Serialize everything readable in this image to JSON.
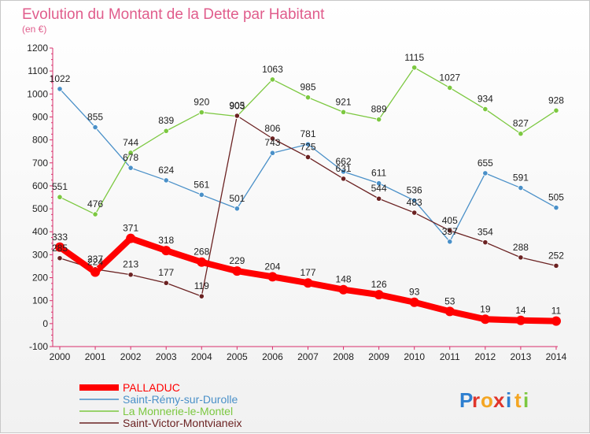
{
  "chart_data": {
    "type": "line",
    "title": "Evolution du Montant de la Dette par Habitant",
    "subtitle": "(en €)",
    "x": [
      "2000",
      "2001",
      "2002",
      "2003",
      "2004",
      "2005",
      "2006",
      "2007",
      "2008",
      "2009",
      "2010",
      "2011",
      "2012",
      "2013",
      "2014"
    ],
    "ylim": [
      -100,
      1200
    ],
    "yticks": [
      -100,
      0,
      100,
      200,
      300,
      400,
      500,
      600,
      700,
      800,
      900,
      1000,
      1100,
      1200
    ],
    "grid": false,
    "legend_position": "bottom-left",
    "series": [
      {
        "name": "Saint-Rémy-sur-Durolle",
        "color": "#4a90c8",
        "values": [
          1022,
          855,
          678,
          624,
          561,
          501,
          743,
          781,
          662,
          611,
          536,
          357,
          655,
          591,
          505
        ]
      },
      {
        "name": "La Monnerie-le-Montel",
        "color": "#7cc840",
        "values": [
          551,
          476,
          744,
          839,
          920,
          903,
          1063,
          985,
          921,
          889,
          1115,
          1027,
          934,
          827,
          928
        ]
      },
      {
        "name": "Saint-Victor-Montvianeix",
        "color": "#6b2222",
        "values": [
          285,
          237,
          213,
          177,
          119,
          905,
          806,
          725,
          631,
          544,
          483,
          405,
          354,
          288,
          252
        ]
      },
      {
        "name": "PALLADUC",
        "color": "#ff0000",
        "values": [
          333,
          224,
          371,
          318,
          268,
          229,
          204,
          177,
          148,
          126,
          93,
          53,
          19,
          14,
          11
        ]
      }
    ]
  },
  "brand": {
    "letters": [
      "P",
      "r",
      "o",
      "x",
      "i",
      "t",
      "i"
    ],
    "colors": [
      "#2e7fd0",
      "#e0352b",
      "#f4a623",
      "#e0352b",
      "#2e7fd0",
      "#f4a623",
      "#7cc840"
    ]
  }
}
